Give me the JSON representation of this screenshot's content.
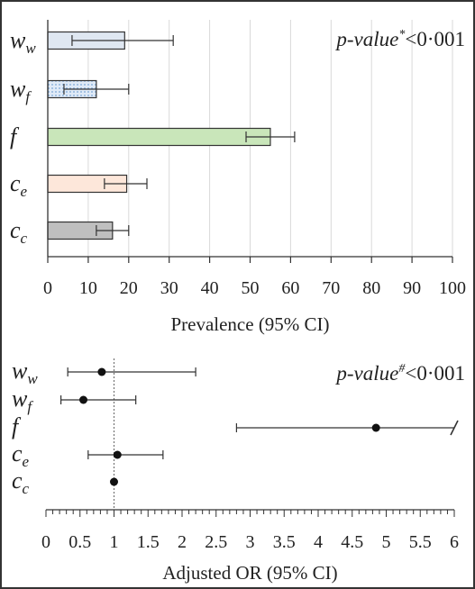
{
  "chart_data": [
    {
      "type": "bar",
      "orientation": "horizontal",
      "categories": [
        {
          "base": "w",
          "sub": "w"
        },
        {
          "base": "w",
          "sub": "f"
        },
        {
          "base": "f",
          "sub": ""
        },
        {
          "base": "c",
          "sub": "e"
        },
        {
          "base": "c",
          "sub": "c"
        }
      ],
      "values": [
        19,
        12,
        55,
        19.5,
        16
      ],
      "ci_low": [
        6,
        4,
        49,
        14,
        12
      ],
      "ci_high": [
        31,
        20,
        61,
        24.5,
        20
      ],
      "colors": [
        "#dfe7f1",
        "#dfeaf7",
        "#c9e6ba",
        "#fde7da",
        "#bfbfbf"
      ],
      "patterns": [
        "none",
        "dots",
        "none",
        "none",
        "none"
      ],
      "xlabel": "Prevalence (95% CI)",
      "xlim": [
        0,
        100
      ],
      "xticks": [
        0,
        10,
        20,
        30,
        40,
        50,
        60,
        70,
        80,
        90,
        100
      ],
      "grid": "vertical",
      "annotation": {
        "main": "p-value",
        "sup": "*",
        "rest": "<0·001"
      }
    },
    {
      "type": "scatter",
      "subtype": "forest",
      "categories": [
        {
          "base": "w",
          "sub": "w"
        },
        {
          "base": "w",
          "sub": "f"
        },
        {
          "base": "f",
          "sub": ""
        },
        {
          "base": "c",
          "sub": "e"
        },
        {
          "base": "c",
          "sub": "c"
        }
      ],
      "values": [
        0.82,
        0.55,
        4.85,
        1.05,
        1.0
      ],
      "ci_low": [
        0.32,
        0.22,
        2.8,
        0.62,
        null
      ],
      "ci_high": [
        2.2,
        1.32,
        6.0,
        1.72,
        null
      ],
      "ci_truncated": [
        false,
        false,
        true,
        false,
        false
      ],
      "xlabel": "Adjusted OR (95% CI)",
      "xlim": [
        0,
        6
      ],
      "xticks": [
        0,
        0.5,
        1,
        1.5,
        2,
        2.5,
        3,
        3.5,
        4,
        4.5,
        5,
        5.5,
        6
      ],
      "reference_line": 1,
      "annotation": {
        "main": "p-value",
        "sup": "#",
        "rest": "<0·001"
      }
    }
  ]
}
